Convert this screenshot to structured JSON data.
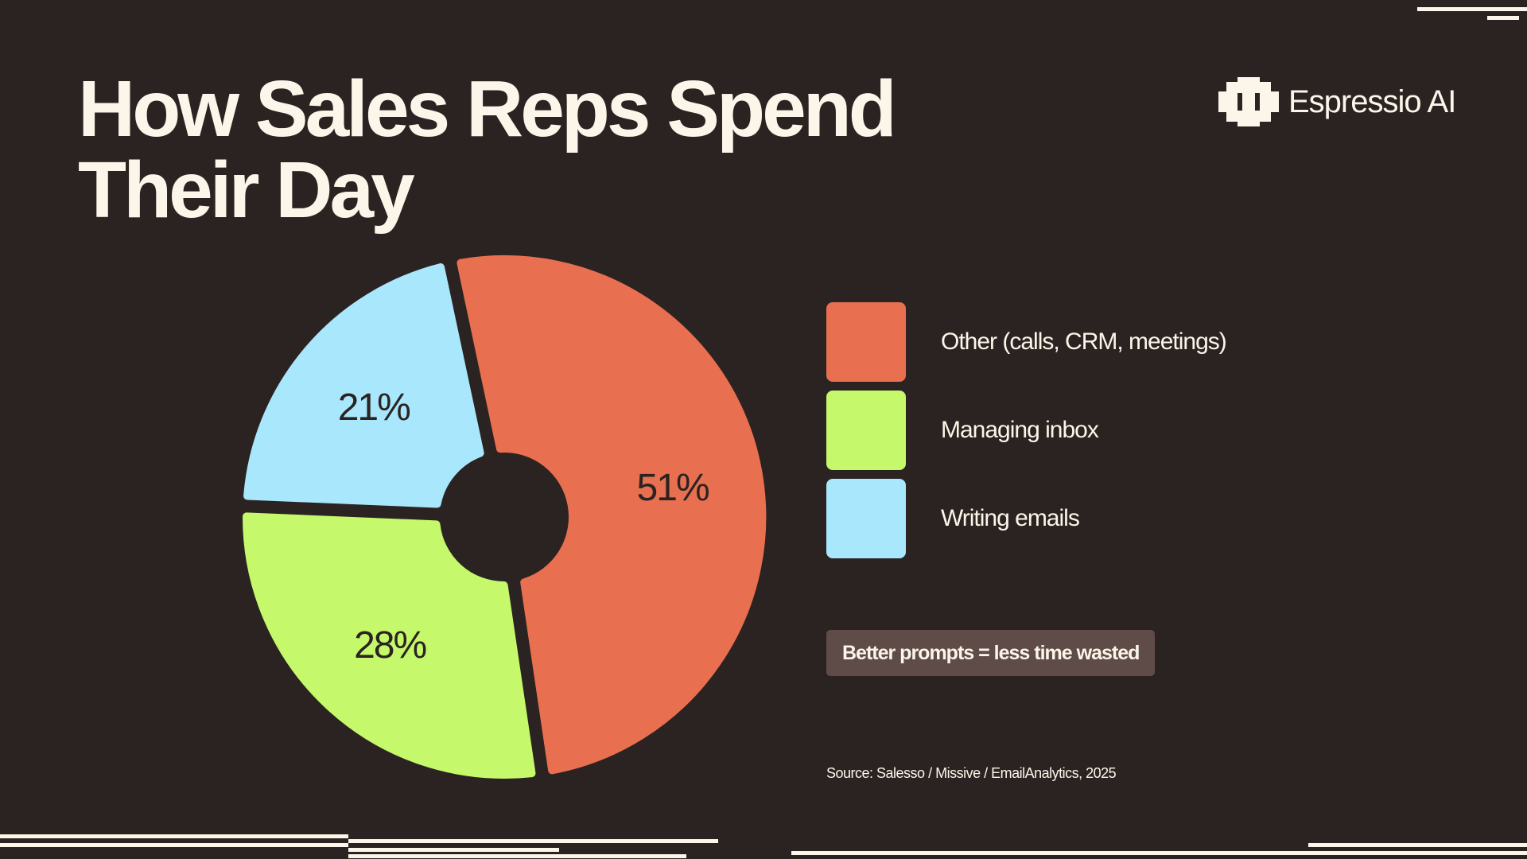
{
  "title": "How Sales Reps Spend Their Day",
  "brand": {
    "name": "Espressio AI",
    "icon": "espressio-logo-icon"
  },
  "chart_data": {
    "type": "pie",
    "categories": [
      "Other (calls, CRM, meetings)",
      "Managing inbox",
      "Writing emails"
    ],
    "values": [
      51,
      28,
      21
    ],
    "labels": [
      "51%",
      "28%",
      "21%"
    ],
    "colors": [
      "#e87050",
      "#c5f86a",
      "#a9e7fc"
    ],
    "legend": "right"
  },
  "legend": {
    "items": [
      {
        "label": "Other (calls, CRM, meetings)",
        "color": "#e87050"
      },
      {
        "label": "Managing inbox",
        "color": "#c5f86a"
      },
      {
        "label": "Writing emails",
        "color": "#a9e7fc"
      }
    ]
  },
  "callout": "Better prompts = less time wasted",
  "source": "Source: Salesso / Missive / EmailAnalytics, 2025",
  "colors": {
    "background": "#2b2322",
    "text": "#fbf6e9",
    "callout_bg": "#5f4b48"
  }
}
